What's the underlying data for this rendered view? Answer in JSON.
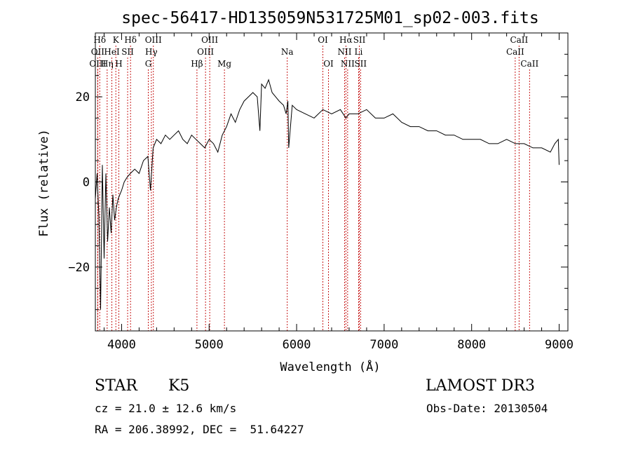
{
  "chart_data": {
    "type": "line",
    "title": "spec-56417-HD135059N531725M01_sp02-003.fits",
    "xlabel": "Wavelength (Å)",
    "ylabel": "Flux (relative)",
    "xlim": [
      3700,
      9100
    ],
    "ylim": [
      -35,
      35
    ],
    "x_ticks": [
      {
        "value": 4000,
        "label": "4000"
      },
      {
        "value": 5000,
        "label": "5000"
      },
      {
        "value": 6000,
        "label": "6000"
      },
      {
        "value": 7000,
        "label": "7000"
      },
      {
        "value": 8000,
        "label": "8000"
      },
      {
        "value": 9000,
        "label": "9000"
      }
    ],
    "y_ticks": [
      {
        "value": -20,
        "label": "−20"
      },
      {
        "value": 0,
        "label": "0"
      },
      {
        "value": 20,
        "label": "20"
      }
    ],
    "series": [
      {
        "color": "#000000",
        "x": [
          3700,
          3720,
          3740,
          3760,
          3780,
          3800,
          3820,
          3840,
          3860,
          3880,
          3900,
          3920,
          3940,
          3960,
          3980,
          4000,
          4030,
          4060,
          4100,
          4150,
          4200,
          4250,
          4300,
          4330,
          4360,
          4400,
          4450,
          4500,
          4550,
          4600,
          4650,
          4700,
          4750,
          4800,
          4850,
          4900,
          4950,
          5000,
          5050,
          5100,
          5150,
          5200,
          5250,
          5300,
          5350,
          5400,
          5450,
          5500,
          5550,
          5580,
          5600,
          5640,
          5680,
          5720,
          5760,
          5800,
          5850,
          5880,
          5900,
          5910,
          5950,
          6000,
          6100,
          6200,
          6300,
          6400,
          6500,
          6563,
          6600,
          6700,
          6800,
          6900,
          7000,
          7100,
          7200,
          7300,
          7400,
          7500,
          7600,
          7700,
          7800,
          7900,
          8000,
          8100,
          8200,
          8300,
          8400,
          8500,
          8600,
          8700,
          8800,
          8900,
          8950,
          8990,
          9000
        ],
        "y": [
          -4,
          2,
          -8,
          -30,
          4,
          -18,
          2,
          -14,
          -6,
          -12,
          -3,
          -9,
          -6,
          -4,
          -3,
          -2,
          0,
          1,
          2,
          3,
          2,
          5,
          6,
          -2,
          8,
          10,
          9,
          11,
          10,
          11,
          12,
          10,
          9,
          11,
          10,
          9,
          8,
          10,
          9,
          7,
          11,
          13,
          16,
          14,
          17,
          19,
          20,
          21,
          20,
          12,
          23,
          22,
          24,
          21,
          20,
          19,
          18,
          16,
          19,
          8,
          18,
          17,
          16,
          15,
          17,
          16,
          17,
          15,
          16,
          16,
          17,
          15,
          15,
          16,
          14,
          13,
          13,
          12,
          12,
          11,
          11,
          10,
          10,
          10,
          9,
          9,
          10,
          9,
          9,
          8,
          8,
          7,
          9,
          10,
          4
        ]
      }
    ],
    "line_ids": [
      {
        "name": "Hδ",
        "wave": 3750,
        "row": 0
      },
      {
        "name": "OII",
        "wave": 3727,
        "row": 1
      },
      {
        "name": "OIII",
        "wave": 3727,
        "row": 2
      },
      {
        "name": "K",
        "wave": 3934,
        "row": 0
      },
      {
        "name": "HeI",
        "wave": 3889,
        "row": 1
      },
      {
        "name": "Hη",
        "wave": 3835,
        "row": 2
      },
      {
        "name": "H",
        "wave": 3968,
        "row": 2
      },
      {
        "name": "SII",
        "wave": 4069,
        "row": 1
      },
      {
        "name": "Hδ",
        "wave": 4102,
        "row": 0
      },
      {
        "name": "OIII",
        "wave": 4363,
        "row": 0
      },
      {
        "name": "Hγ",
        "wave": 4340,
        "row": 1
      },
      {
        "name": "G",
        "wave": 4305,
        "row": 2
      },
      {
        "name": "OIII",
        "wave": 5007,
        "row": 0
      },
      {
        "name": "OIII",
        "wave": 4959,
        "row": 1
      },
      {
        "name": "Hβ",
        "wave": 4861,
        "row": 2
      },
      {
        "name": "Mg",
        "wave": 5175,
        "row": 2
      },
      {
        "name": "Na",
        "wave": 5893,
        "row": 1
      },
      {
        "name": "OI",
        "wave": 6300,
        "row": 0
      },
      {
        "name": "OI",
        "wave": 6364,
        "row": 2
      },
      {
        "name": "Hα",
        "wave": 6563,
        "row": 0
      },
      {
        "name": "NII",
        "wave": 6548,
        "row": 1
      },
      {
        "name": "NII",
        "wave": 6583,
        "row": 2
      },
      {
        "name": "SII",
        "wave": 6717,
        "row": 0
      },
      {
        "name": "Li",
        "wave": 6708,
        "row": 1
      },
      {
        "name": "SII",
        "wave": 6731,
        "row": 2
      },
      {
        "name": "CaII",
        "wave": 8542,
        "row": 0
      },
      {
        "name": "CaII",
        "wave": 8498,
        "row": 1
      },
      {
        "name": "CaII",
        "wave": 8662,
        "row": 2
      }
    ],
    "grid": false,
    "legend": "none"
  },
  "info": {
    "class": "STAR",
    "subclass": "K5",
    "survey": "LAMOST DR3",
    "cz": "cz = 21.0 ± 12.6 km/s",
    "obsdate": "Obs-Date: 20130504",
    "coords": "RA = 206.38992, DEC =  51.64227"
  }
}
